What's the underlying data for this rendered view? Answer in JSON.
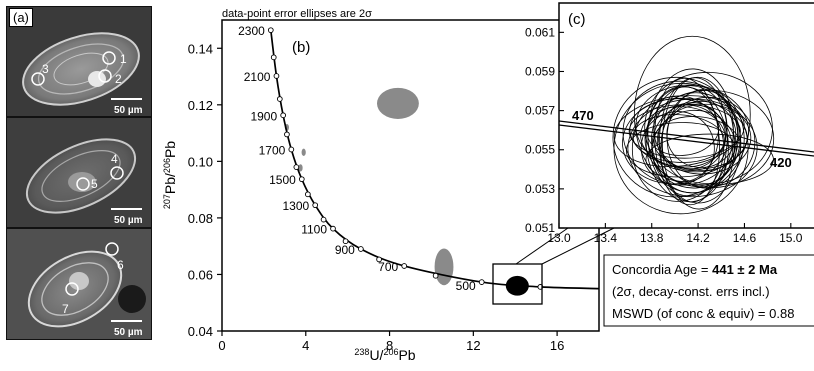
{
  "panel_a": {
    "label": "(a)",
    "images": [
      {
        "spots": [
          "1",
          "2",
          "3"
        ],
        "scale_bar": "50 µm"
      },
      {
        "spots": [
          "4",
          "5"
        ],
        "scale_bar": "50 µm"
      },
      {
        "spots": [
          "6",
          "7"
        ],
        "scale_bar": "50 µm"
      }
    ]
  },
  "panel_b": {
    "label": "(b)",
    "note": "data-point error ellipses are 2σ",
    "x_axis_label": "238U/206Pb",
    "y_axis_label": "207Pb/206Pb",
    "x_ticks": [
      "0",
      "4",
      "8",
      "12",
      "16"
    ],
    "y_ticks": [
      "0.04",
      "0.06",
      "0.08",
      "0.10",
      "0.12",
      "0.14"
    ],
    "concordia_age_labels": [
      "2300",
      "2100",
      "1900",
      "1700",
      "1500",
      "1300",
      "1100",
      "900",
      "700",
      "500"
    ]
  },
  "panel_c": {
    "label": "(c)",
    "x_ticks": [
      "13.0",
      "13.4",
      "13.8",
      "14.2",
      "14.6",
      "15.0"
    ],
    "y_ticks": [
      "0.061",
      "0.059",
      "0.057",
      "0.055",
      "0.053",
      "0.051"
    ],
    "age_labels": [
      "470",
      "420"
    ]
  },
  "result_box": {
    "line1_prefix": "Concordia Age = ",
    "line1_value": "441 ± 2 Ma",
    "line2": "(2σ, decay-const. errs incl.)",
    "line3": "MSWD (of conc & equiv) = 0.88"
  },
  "chart_data": [
    {
      "type": "scatter",
      "title": "",
      "xlabel": "238U/206Pb",
      "ylabel": "207Pb/206Pb",
      "xlim": [
        0,
        18
      ],
      "ylim": [
        0.04,
        0.15
      ],
      "concordia": [
        {
          "age": 2300,
          "x": 2.33,
          "y": 0.1464
        },
        {
          "age": 2100,
          "x": 2.6,
          "y": 0.1302
        },
        {
          "age": 1900,
          "x": 2.92,
          "y": 0.1163
        },
        {
          "age": 1700,
          "x": 3.31,
          "y": 0.1042
        },
        {
          "age": 1500,
          "x": 3.81,
          "y": 0.0937
        },
        {
          "age": 1300,
          "x": 4.45,
          "y": 0.0845
        },
        {
          "age": 1100,
          "x": 5.3,
          "y": 0.0762
        },
        {
          "age": 900,
          "x": 6.63,
          "y": 0.069
        },
        {
          "age": 700,
          "x": 8.7,
          "y": 0.063
        },
        {
          "age": 500,
          "x": 12.4,
          "y": 0.0573
        }
      ],
      "ellipses": [
        {
          "x": 8.4,
          "y": 0.1205,
          "sx": 1.0,
          "sy": 0.0055,
          "fill": "#8a8a8a"
        },
        {
          "x": 10.6,
          "y": 0.0627,
          "sx": 0.45,
          "sy": 0.0065,
          "fill": "#8a8a8a"
        },
        {
          "x": 3.75,
          "y": 0.0977,
          "sx": 0.1,
          "sy": 0.0013,
          "fill": "#8a8a8a"
        },
        {
          "x": 3.9,
          "y": 0.1032,
          "sx": 0.1,
          "sy": 0.0013,
          "fill": "#8a8a8a"
        },
        {
          "x": 3.1,
          "y": 0.112,
          "sx": 0.1,
          "sy": 0.0012,
          "fill": "#8a8a8a"
        },
        {
          "x": 14.1,
          "y": 0.056,
          "sx": 0.55,
          "sy": 0.0035,
          "fill": "#000000"
        }
      ]
    },
    {
      "type": "scatter",
      "title": "",
      "xlim": [
        13.0,
        15.2
      ],
      "ylim": [
        0.051,
        0.0625
      ],
      "concordia_labels": [
        {
          "age": 470,
          "x": 13.1,
          "y": 0.0566
        },
        {
          "age": 420,
          "x": 14.9,
          "y": 0.0552
        }
      ]
    }
  ]
}
